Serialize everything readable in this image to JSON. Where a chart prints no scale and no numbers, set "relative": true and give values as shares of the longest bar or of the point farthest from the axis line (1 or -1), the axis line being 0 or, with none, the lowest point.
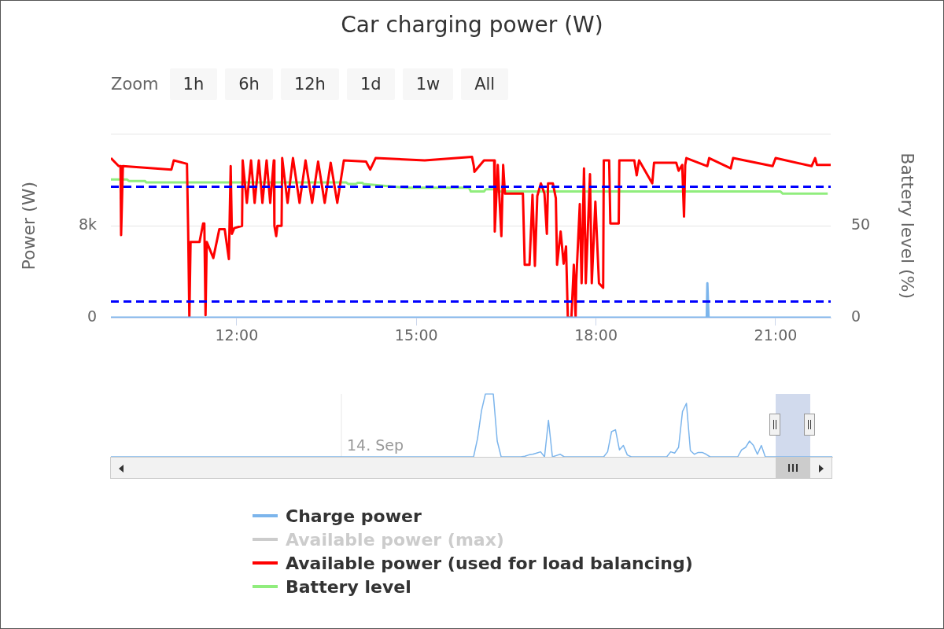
{
  "chart_data": [
    {
      "type": "line",
      "title": "Car charging power (W)",
      "ylabel": "Power (W)",
      "y2label": "Battery level (%)",
      "annotations": [
        "Zoom",
        "1h",
        "6h",
        "12h",
        "1d",
        "1w",
        "All"
      ],
      "xlim": [
        9.9,
        21.92
      ],
      "xticks": [
        {
          "value": 12,
          "label": "12:00"
        },
        {
          "value": 15,
          "label": "15:00"
        },
        {
          "value": 18,
          "label": "18:00"
        },
        {
          "value": 21,
          "label": "21:00"
        }
      ],
      "ylim": [
        0,
        16000
      ],
      "yticks": [
        0,
        {
          "value": 8000,
          "label": "8k"
        },
        {
          "value": 16000,
          "label": null
        }
      ],
      "y2lim": [
        0,
        100
      ],
      "y2ticks": [
        0,
        50
      ],
      "grid": "y",
      "legend": "bottom",
      "marker": "none",
      "ref_lines": [
        {
          "axis": "y",
          "value": 11400,
          "color": "#0000ff",
          "line_style": "dashed"
        },
        {
          "axis": "y",
          "value": 1400,
          "color": "#0000ff",
          "line_style": "dashed"
        }
      ],
      "series": [
        {
          "name": "Charge power",
          "color": "#7cb5ec",
          "x": [
            9.9,
            19.85,
            19.86,
            19.88,
            21.92
          ],
          "values": [
            0,
            0,
            3000,
            0,
            0
          ]
        },
        {
          "name": "Available power (max)",
          "color": "#cccccc"
        },
        {
          "name": "Available power (used for load balancing)",
          "color": "#ff0000",
          "x": [
            9.9,
            10.03,
            10.06,
            10.07,
            10.1,
            10.91,
            10.95,
            11.17,
            11.19,
            11.21,
            11.23,
            11.38,
            11.44,
            11.46,
            11.48,
            11.5,
            11.61,
            11.71,
            11.8,
            11.87,
            11.9,
            11.92,
            11.96,
            12.09,
            12.1,
            12.17,
            12.24,
            12.3,
            12.37,
            12.43,
            12.5,
            12.56,
            12.62,
            12.63,
            12.66,
            12.68,
            12.75,
            12.76,
            12.85,
            12.94,
            13.05,
            13.15,
            13.26,
            13.36,
            13.47,
            13.57,
            13.68,
            13.79,
            14.16,
            14.23,
            14.32,
            15.14,
            15.93,
            15.96,
            15.97,
            16.13,
            16.3,
            16.31,
            16.36,
            16.42,
            16.45,
            16.48,
            16.78,
            16.81,
            16.89,
            16.94,
            16.98,
            17.02,
            17.08,
            17.14,
            17.18,
            17.2,
            17.28,
            17.33,
            17.35,
            17.41,
            17.46,
            17.5,
            17.53,
            17.59,
            17.63,
            17.66,
            17.67,
            17.73,
            17.76,
            17.8,
            17.83,
            17.9,
            17.93,
            17.99,
            18.05,
            18.12,
            18.13,
            18.22,
            18.24,
            18.38,
            18.39,
            18.64,
            18.68,
            18.72,
            18.94,
            18.97,
            19.34,
            19.38,
            19.44,
            19.47,
            19.49,
            19.51,
            19.86,
            19.89,
            20.25,
            20.29,
            20.95,
            21.0,
            21.6,
            21.66,
            21.69,
            21.92
          ],
          "values": [
            13900,
            13200,
            13200,
            7200,
            13200,
            12900,
            13700,
            13400,
            7500,
            0,
            6600,
            6600,
            8200,
            8200,
            200,
            6600,
            5200,
            7700,
            7700,
            5100,
            13200,
            7300,
            7800,
            8000,
            13700,
            10000,
            13700,
            10000,
            13700,
            10000,
            13700,
            10000,
            13700,
            8000,
            7100,
            8000,
            8000,
            13900,
            10000,
            13900,
            10000,
            13700,
            10000,
            13600,
            10000,
            13500,
            10000,
            13700,
            13600,
            12900,
            13900,
            13700,
            14000,
            13200,
            12700,
            13700,
            13700,
            7500,
            13300,
            7100,
            13300,
            10800,
            10800,
            4600,
            4600,
            10700,
            4500,
            10600,
            11700,
            10800,
            7300,
            11700,
            11700,
            10400,
            4600,
            7500,
            4700,
            6200,
            0,
            0,
            4600,
            0,
            3100,
            9900,
            3000,
            13000,
            3000,
            12500,
            3000,
            10100,
            3000,
            2600,
            13700,
            13700,
            8200,
            8200,
            13700,
            13700,
            12400,
            13700,
            11700,
            13500,
            13500,
            12800,
            13300,
            8800,
            13300,
            13900,
            13200,
            13900,
            13000,
            13900,
            13200,
            13900,
            13200,
            13900,
            13300,
            13300
          ]
        },
        {
          "name": "Battery level",
          "color": "#90ed7d",
          "axis": "y2",
          "x": [
            9.9,
            10.17,
            10.2,
            10.47,
            10.49,
            13.83,
            13.86,
            13.99,
            14.02,
            14.1,
            14.12,
            14.84,
            15.88,
            15.91,
            16.13,
            16.16,
            16.3,
            16.32,
            21.08,
            21.12,
            21.87
          ],
          "values": [
            75.2,
            75.2,
            74.4,
            74.4,
            73.6,
            73.6,
            72.8,
            72.8,
            73.4,
            73.4,
            72.8,
            70.7,
            70.7,
            68.7,
            68.7,
            69.9,
            69.9,
            68.7,
            68.7,
            67.5,
            67.5
          ]
        }
      ]
    },
    {
      "type": "line",
      "relative": true,
      "color": "#7cb5ec",
      "annotations": [
        "14. Sep"
      ],
      "categories": [
        null,
        null,
        null,
        null,
        null,
        null,
        null,
        null,
        null,
        null,
        null,
        null,
        null,
        null,
        null,
        null,
        null,
        null,
        null,
        null,
        null,
        null,
        null,
        null,
        null,
        null,
        null,
        null,
        null,
        null,
        null,
        null,
        null,
        null,
        null,
        null,
        null,
        null,
        null,
        null,
        null,
        null,
        null,
        null,
        null,
        null,
        null,
        null,
        null,
        null,
        null,
        null,
        null,
        null,
        null,
        null,
        null,
        null,
        null,
        null,
        null,
        null,
        null,
        null,
        null,
        null,
        null,
        null,
        null,
        null,
        null,
        null,
        null,
        null,
        null,
        null,
        null,
        null,
        null,
        null,
        null,
        null,
        null,
        null,
        null,
        null,
        null,
        null,
        null,
        null,
        null,
        null,
        null,
        null,
        null,
        null,
        null,
        null,
        null,
        null,
        null,
        null,
        null,
        null,
        null,
        null,
        null,
        null,
        null,
        null,
        null,
        null,
        null,
        null,
        null,
        null,
        null,
        null,
        null,
        null,
        null,
        null,
        null,
        null,
        null,
        null,
        null,
        null,
        null,
        null,
        null,
        null,
        null,
        null,
        null,
        null,
        null,
        null,
        null,
        null,
        null,
        null,
        null,
        null,
        null,
        null,
        null,
        null,
        null,
        null,
        null,
        null,
        null,
        null,
        null,
        null,
        null,
        null,
        null,
        null,
        null,
        null,
        null,
        null,
        null,
        null,
        null,
        null,
        null,
        null,
        null,
        null,
        null,
        null,
        null,
        null,
        null,
        null,
        null,
        null,
        null,
        null,
        null,
        null
      ],
      "values": [
        0,
        0,
        0,
        0,
        0,
        0,
        0,
        0,
        0,
        0,
        0,
        0,
        0,
        0,
        0,
        0,
        0,
        0,
        0,
        0,
        0,
        0,
        0,
        0,
        0,
        0,
        0,
        0,
        0,
        0,
        0,
        0,
        0,
        0,
        0,
        0,
        0,
        0,
        0,
        0,
        0,
        0,
        0,
        0,
        0,
        0,
        0,
        0,
        0,
        0,
        0,
        0,
        0,
        0,
        0,
        0,
        0,
        0,
        0,
        0,
        0,
        0,
        0,
        0,
        0,
        0,
        0,
        0,
        0,
        0,
        0,
        0,
        0,
        0,
        0,
        0,
        0,
        0,
        0,
        0,
        0,
        0,
        0,
        0,
        0,
        0,
        0,
        0,
        0,
        0,
        0,
        0,
        0,
        0.29,
        0.73,
        1,
        1,
        1,
        0.25,
        0,
        0,
        0,
        0,
        0,
        0,
        0.01,
        0.03,
        0.04,
        0.06,
        0.08,
        0,
        0.58,
        0,
        0.02,
        0.04,
        0,
        0,
        0,
        0,
        0,
        0,
        0,
        0,
        0,
        0,
        0,
        0.08,
        0.4,
        0.43,
        0.11,
        0.18,
        0.03,
        0,
        0,
        0,
        0,
        0,
        0,
        0,
        0,
        0,
        0,
        0.08,
        0.06,
        0.15,
        0.72,
        0.85,
        0.1,
        0.04,
        0.07,
        0.07,
        0.04,
        0,
        0,
        0,
        0,
        0,
        0,
        0,
        0,
        0.11,
        0.15,
        0.25,
        0.18,
        0.04,
        0.18,
        0,
        0,
        0,
        0,
        0,
        0,
        0,
        0,
        0,
        0,
        0,
        0,
        0,
        0,
        0,
        0,
        0,
        0
      ]
    }
  ]
}
